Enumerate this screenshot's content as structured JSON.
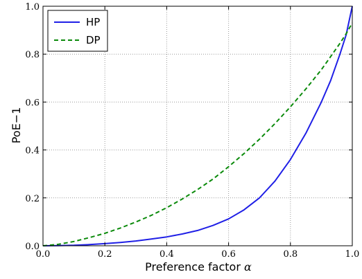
{
  "chart_data": {
    "type": "line",
    "xlabel": "Preference factor",
    "xlabel_symbol": "α",
    "ylabel": "PoE−1",
    "xlim": [
      0.0,
      1.0
    ],
    "ylim": [
      0.0,
      1.0
    ],
    "xticks": [
      "0.0",
      "0.2",
      "0.4",
      "0.6",
      "0.8",
      "1.0"
    ],
    "yticks": [
      "0.0",
      "0.2",
      "0.4",
      "0.6",
      "0.8",
      "1.0"
    ],
    "grid": true,
    "legend_position": "top-left",
    "x": [
      0.0,
      0.05,
      0.1,
      0.15,
      0.2,
      0.25,
      0.3,
      0.35,
      0.4,
      0.45,
      0.5,
      0.55,
      0.6,
      0.65,
      0.7,
      0.75,
      0.8,
      0.85,
      0.9,
      0.93,
      0.96,
      0.98,
      1.0
    ],
    "series": [
      {
        "name": "HP",
        "color": "#1f1fe6",
        "style": "solid",
        "values": [
          0.0,
          0.0006,
          0.002,
          0.005,
          0.009,
          0.014,
          0.02,
          0.028,
          0.037,
          0.049,
          0.064,
          0.085,
          0.112,
          0.15,
          0.2,
          0.27,
          0.36,
          0.47,
          0.6,
          0.69,
          0.8,
          0.88,
          1.0
        ]
      },
      {
        "name": "DP",
        "color": "#0a8a0a",
        "style": "dashed",
        "values": [
          0.0,
          0.006,
          0.018,
          0.034,
          0.052,
          0.074,
          0.099,
          0.127,
          0.159,
          0.195,
          0.235,
          0.279,
          0.33,
          0.385,
          0.445,
          0.51,
          0.58,
          0.655,
          0.735,
          0.79,
          0.845,
          0.885,
          0.93
        ]
      }
    ]
  }
}
